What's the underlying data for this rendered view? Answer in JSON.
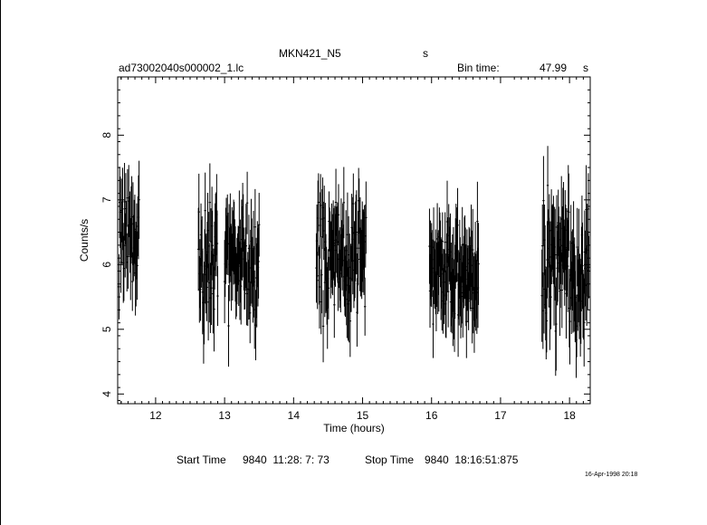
{
  "header": {
    "title": "MKN421_N5",
    "title_unit": "s",
    "file_name": "ad73002040s000002_1.lc",
    "bin_label": "Bin time:",
    "bin_value": "47.99",
    "bin_unit": "s"
  },
  "footer": {
    "start_label": "Start Time",
    "start_value": "9840  11:28: 7: 73",
    "stop_label": "Stop Time",
    "stop_value": "9840  18:16:51:875",
    "timestamp": "16-Apr-1998 20:18"
  },
  "colors": {
    "ink": "#000000",
    "background": "#ffffff"
  },
  "chart_data": {
    "type": "scatter",
    "title": "MKN421_N5",
    "xlabel": "Time (hours)",
    "ylabel": "Counts/s",
    "xlim": [
      11.45,
      18.3
    ],
    "ylim": [
      3.85,
      8.9
    ],
    "xticks": [
      12,
      13,
      14,
      15,
      16,
      17,
      18
    ],
    "yticks": [
      4,
      5,
      6,
      7,
      8
    ],
    "grid": false,
    "legend": "none",
    "error_bars": true,
    "segments": [
      {
        "x_start": 11.47,
        "x_end": 11.76,
        "mean_y": 6.5,
        "scatter": 0.35,
        "err": 0.55,
        "n": 34
      },
      {
        "x_start": 12.62,
        "x_end": 12.9,
        "mean_y": 6.1,
        "scatter": 0.45,
        "err": 0.55,
        "n": 38
      },
      {
        "x_start": 13.0,
        "x_end": 13.5,
        "mean_y": 6.05,
        "scatter": 0.4,
        "err": 0.55,
        "n": 62
      },
      {
        "x_start": 14.33,
        "x_end": 15.05,
        "mean_y": 6.05,
        "scatter": 0.4,
        "err": 0.55,
        "n": 95
      },
      {
        "x_start": 15.97,
        "x_end": 16.68,
        "mean_y": 5.9,
        "scatter": 0.38,
        "err": 0.55,
        "n": 95
      },
      {
        "x_start": 17.6,
        "x_end": 18.28,
        "mean_y": 6.05,
        "scatter": 0.5,
        "err": 0.6,
        "n": 90
      }
    ]
  }
}
